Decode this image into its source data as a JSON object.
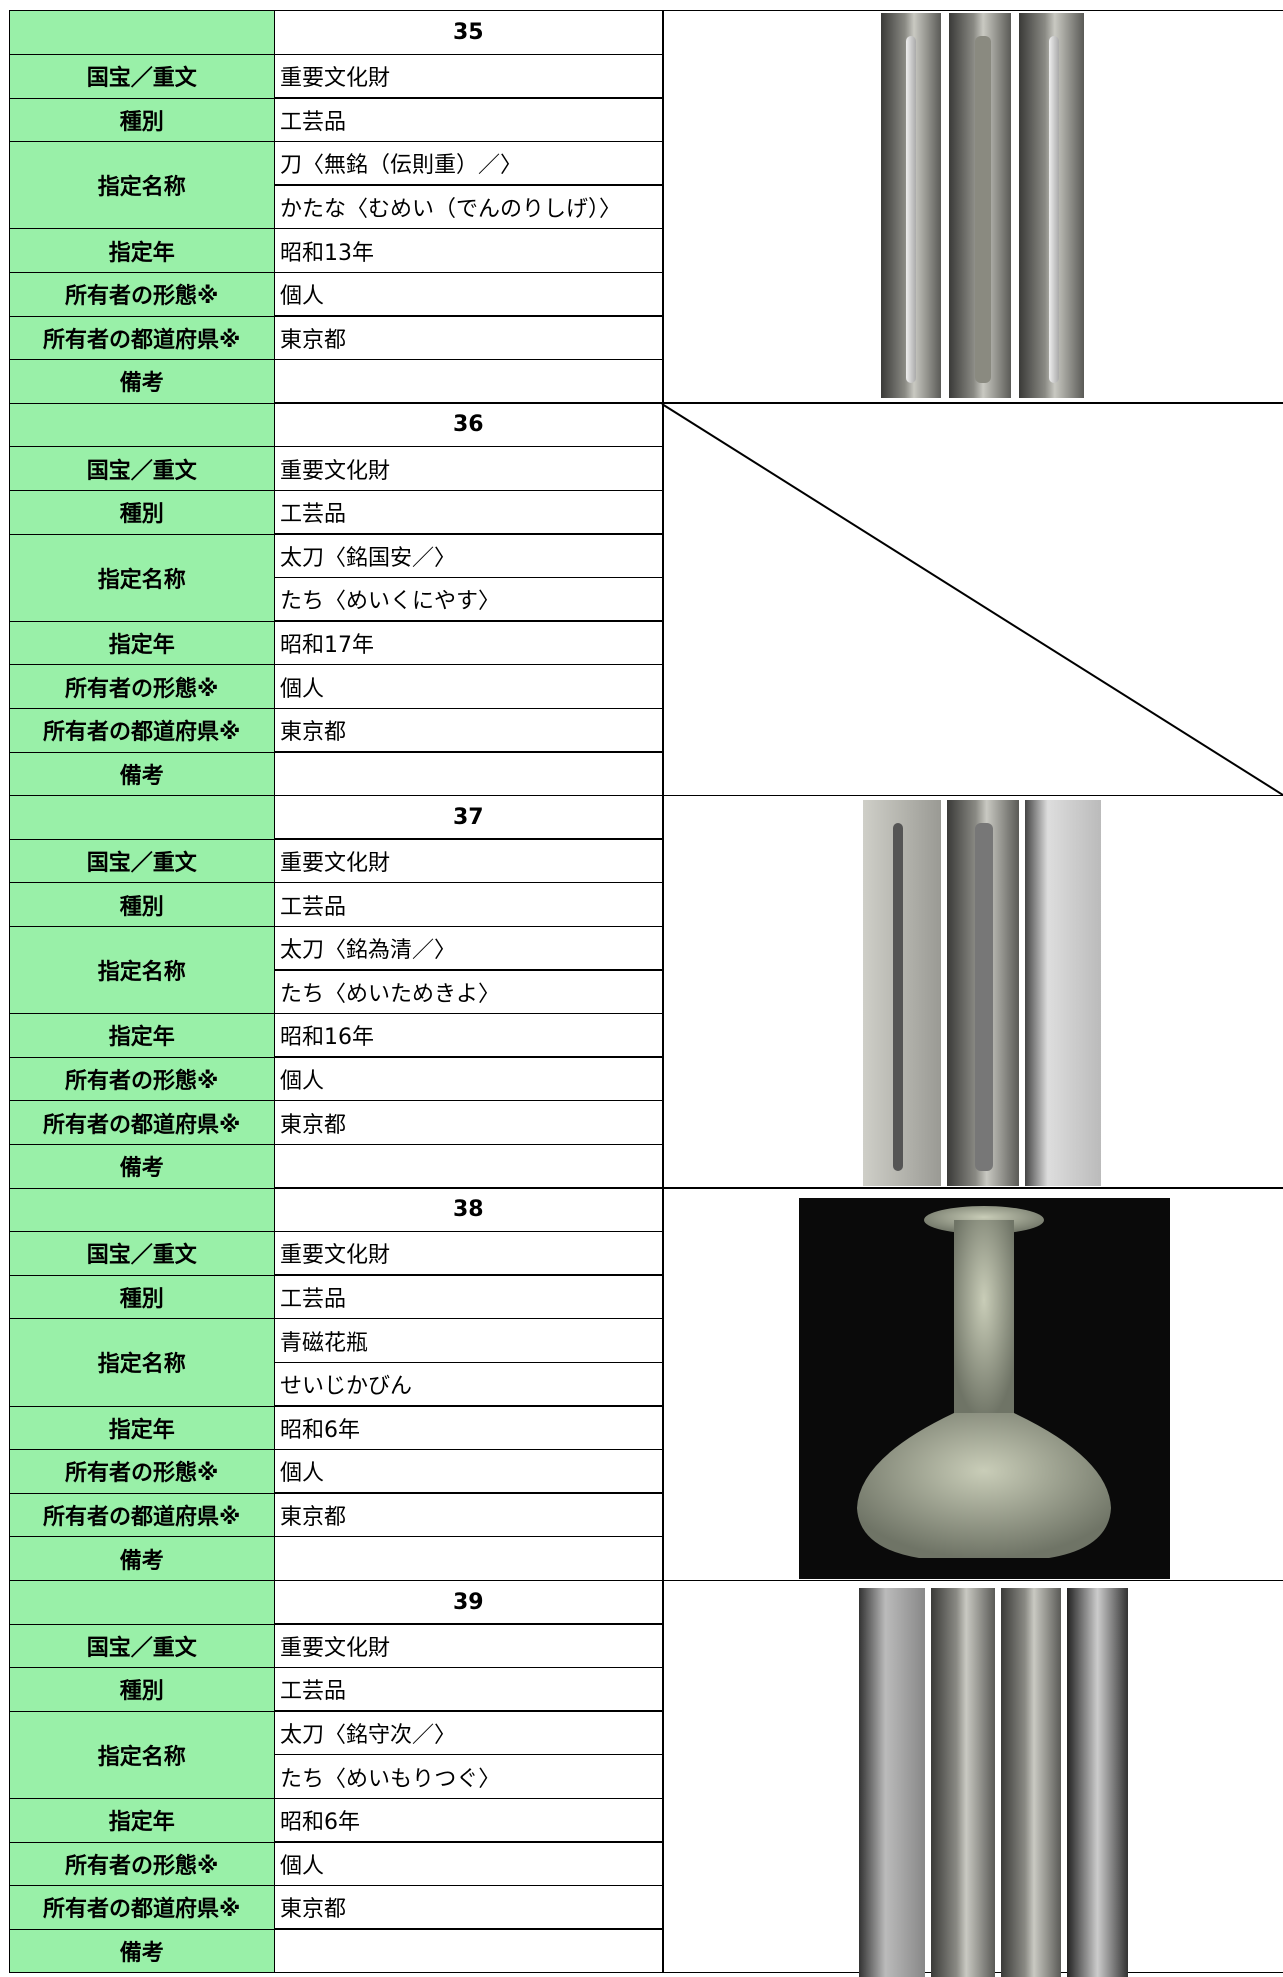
{
  "row_labels": [
    "国宝／重文",
    "種別",
    "指定名称",
    "指定年",
    "所有者の形態※",
    "所有者の都道府県※",
    "備考"
  ],
  "items": [
    {
      "number": 35,
      "designation": "重要文化財",
      "category": "工芸品",
      "name": "刀〈無銘（伝則重）／〉",
      "reading": "かたな〈むめい（でんのりしげ）〉",
      "year": "昭和13年",
      "owner_type": "個人",
      "prefecture": "東京都"
    },
    {
      "number": 36,
      "designation": "重要文化財",
      "category": "工芸品",
      "name": "太刀〈銘国安／〉",
      "reading": "たち〈めいくにやす〉",
      "year": "昭和17年",
      "owner_type": "個人",
      "prefecture": "東京都"
    },
    {
      "number": 37,
      "designation": "重要文化財",
      "category": "工芸品",
      "name": "太刀〈銘為清／〉",
      "reading": "たち〈めいためきよ〉",
      "year": "昭和16年",
      "owner_type": "個人",
      "prefecture": "東京都"
    },
    {
      "number": 38,
      "designation": "重要文化財",
      "category": "工芸品",
      "name": "青磁花瓶",
      "reading": "せいじかびん",
      "year": "昭和6年",
      "owner_type": "個人",
      "prefecture": "東京都"
    },
    {
      "number": 39,
      "designation": "重要文化財",
      "category": "工芸品",
      "name": "太刀〈銘守次／〉",
      "reading": "たち〈めいもりつぐ〉",
      "year": "昭和6年",
      "owner_type": "個人",
      "prefecture": "東京都"
    }
  ]
}
